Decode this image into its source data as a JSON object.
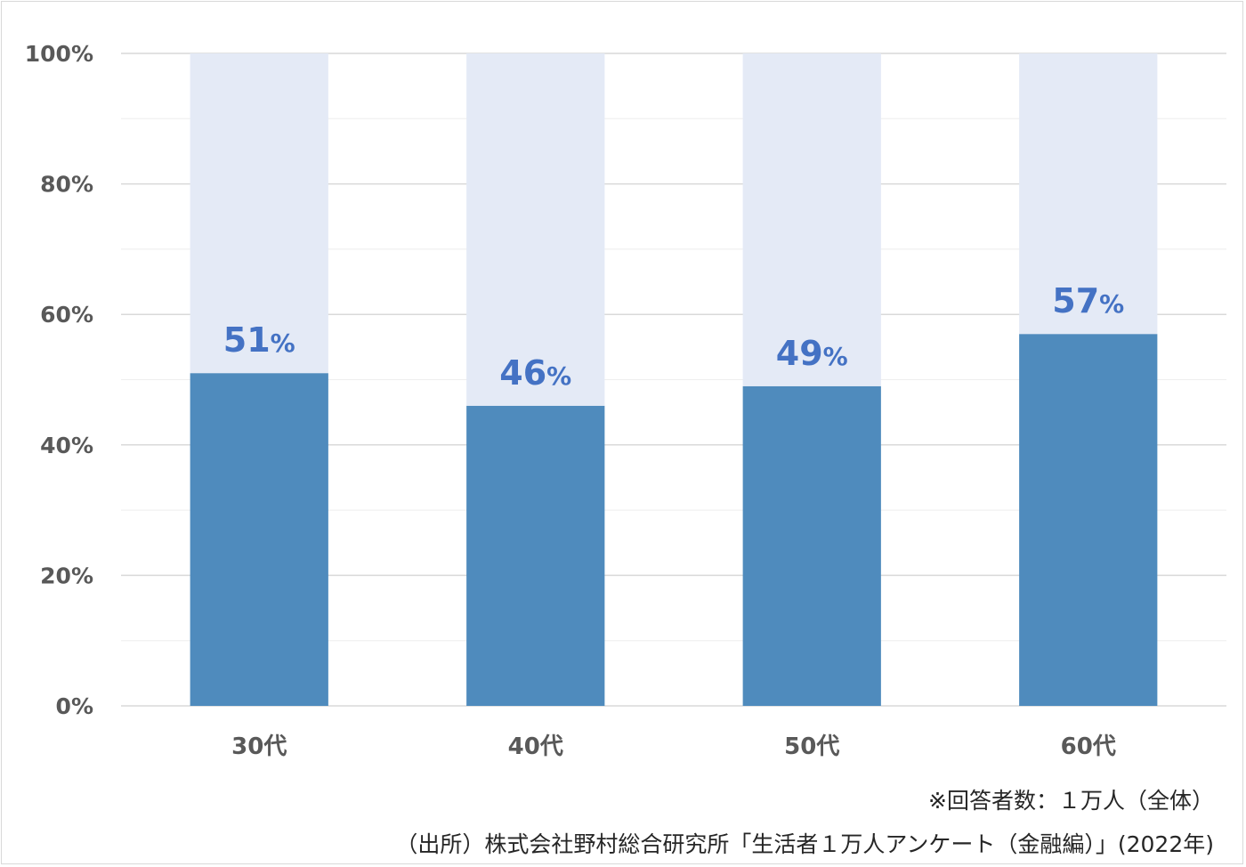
{
  "chart_data": {
    "type": "bar",
    "stacked_to_100": true,
    "title": "",
    "xlabel": "",
    "ylabel": "",
    "categories": [
      "30代",
      "40代",
      "50代",
      "60代"
    ],
    "series": [
      {
        "values": [
          51,
          46,
          49,
          57
        ],
        "color": "#4f8bbd"
      },
      {
        "values": [
          49,
          54,
          51,
          43
        ],
        "color": "#e4eaf6"
      }
    ],
    "data_labels": [
      "51",
      "46",
      "49",
      "57"
    ],
    "data_label_suffix": "%",
    "ylim": [
      0,
      100
    ],
    "yticks": [
      0,
      20,
      40,
      60,
      80,
      100
    ],
    "ytick_labels": [
      "0%",
      "20%",
      "40%",
      "60%",
      "80%",
      "100%"
    ],
    "grid": true,
    "legend": "none",
    "colors": {
      "grid_major": "#d9d9d9",
      "grid_minor": "#eeeeee",
      "label": "#4472c4",
      "tick": "#595959"
    }
  },
  "notes": {
    "respondents": "※回答者数：１万人（全体）",
    "source": "（出所）株式会社野村総合研究所「生活者１万人アンケート（金融編）」(2022年)"
  }
}
